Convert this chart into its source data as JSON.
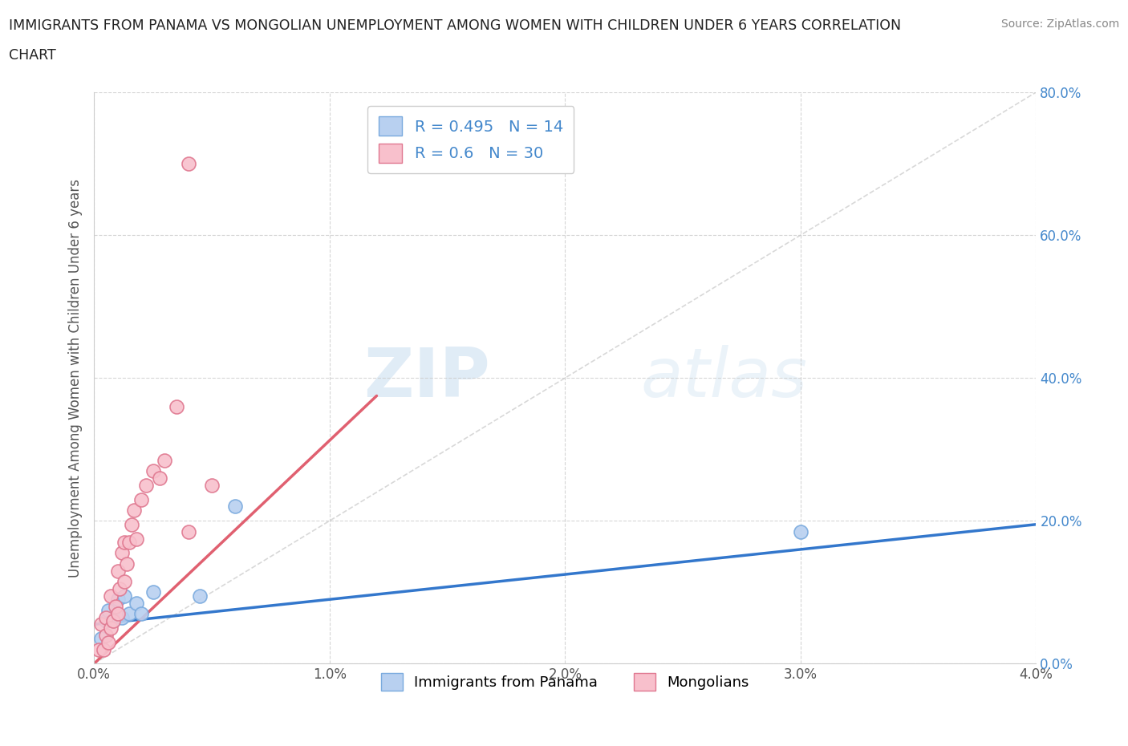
{
  "title_line1": "IMMIGRANTS FROM PANAMA VS MONGOLIAN UNEMPLOYMENT AMONG WOMEN WITH CHILDREN UNDER 6 YEARS CORRELATION",
  "title_line2": "CHART",
  "source": "Source: ZipAtlas.com",
  "ylabel": "Unemployment Among Women with Children Under 6 years",
  "xlim": [
    0.0,
    0.04
  ],
  "ylim": [
    0.0,
    0.8
  ],
  "xticks": [
    0.0,
    0.01,
    0.02,
    0.03,
    0.04
  ],
  "yticks": [
    0.0,
    0.2,
    0.4,
    0.6,
    0.8
  ],
  "xticklabels": [
    "0.0%",
    "1.0%",
    "2.0%",
    "3.0%",
    "4.0%"
  ],
  "yticklabels": [
    "0.0%",
    "20.0%",
    "40.0%",
    "60.0%",
    "80.0%"
  ],
  "background_color": "#ffffff",
  "grid_color": "#cccccc",
  "diagonal_color": "#c8c8c8",
  "watermark_zip": "ZIP",
  "watermark_atlas": "atlas",
  "series": [
    {
      "name": "Immigrants from Panama",
      "color": "#b8d0f0",
      "edge_color": "#7aaade",
      "R": 0.495,
      "N": 14,
      "trend_color": "#3377cc",
      "trend_x0": 0.0,
      "trend_y0": 0.055,
      "trend_x1": 0.04,
      "trend_y1": 0.195,
      "points_x": [
        0.0003,
        0.0005,
        0.0006,
        0.0008,
        0.001,
        0.0012,
        0.0013,
        0.0015,
        0.0018,
        0.002,
        0.0025,
        0.0045,
        0.006,
        0.03
      ],
      "points_y": [
        0.035,
        0.06,
        0.075,
        0.06,
        0.09,
        0.065,
        0.095,
        0.07,
        0.085,
        0.07,
        0.1,
        0.095,
        0.22,
        0.185
      ]
    },
    {
      "name": "Mongolians",
      "color": "#f8c0cc",
      "edge_color": "#e07890",
      "R": 0.6,
      "N": 30,
      "trend_color": "#e06070",
      "trend_x0": 0.0,
      "trend_y0": 0.0,
      "trend_x1": 0.012,
      "trend_y1": 0.375,
      "points_x": [
        0.0002,
        0.0003,
        0.0004,
        0.0005,
        0.0005,
        0.0006,
        0.0007,
        0.0007,
        0.0008,
        0.0009,
        0.001,
        0.001,
        0.0011,
        0.0012,
        0.0013,
        0.0013,
        0.0014,
        0.0015,
        0.0016,
        0.0017,
        0.0018,
        0.002,
        0.0022,
        0.0025,
        0.0028,
        0.003,
        0.0035,
        0.004,
        0.005,
        0.004
      ],
      "points_y": [
        0.02,
        0.055,
        0.02,
        0.04,
        0.065,
        0.03,
        0.05,
        0.095,
        0.06,
        0.08,
        0.07,
        0.13,
        0.105,
        0.155,
        0.115,
        0.17,
        0.14,
        0.17,
        0.195,
        0.215,
        0.175,
        0.23,
        0.25,
        0.27,
        0.26,
        0.285,
        0.36,
        0.7,
        0.25,
        0.185
      ]
    }
  ]
}
